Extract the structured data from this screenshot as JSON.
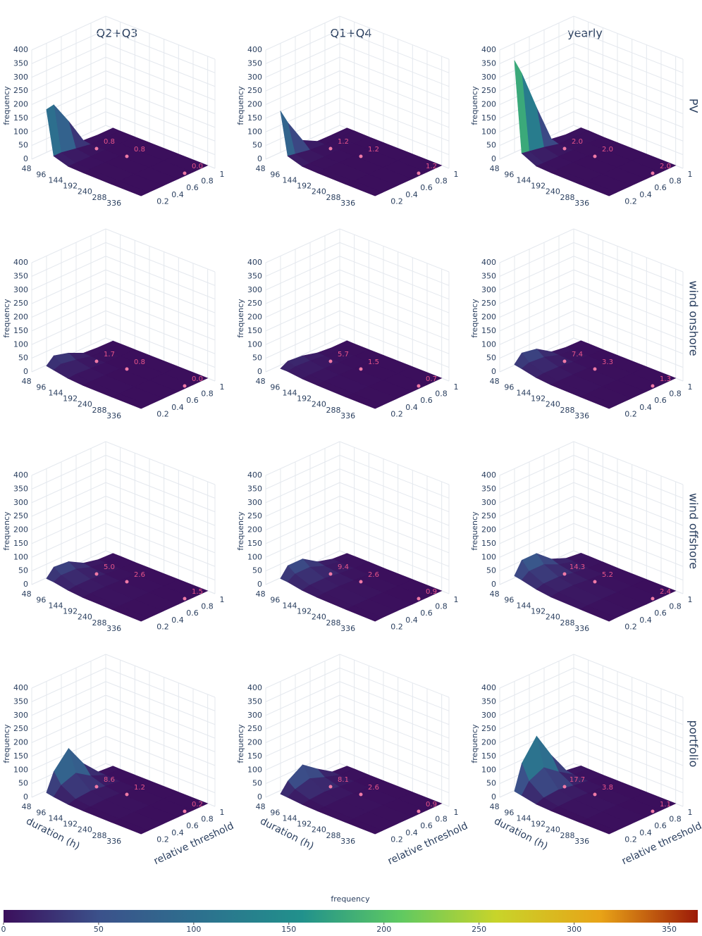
{
  "column_titles": [
    "Q2+Q3",
    "Q1+Q4",
    "yearly"
  ],
  "row_titles": [
    "PV",
    "wind onshore",
    "wind offshore",
    "portfolio"
  ],
  "axes": {
    "x": {
      "title": "duration (h)",
      "lim": [
        0,
        360
      ],
      "ticks": [
        48,
        96,
        144,
        192,
        240,
        288,
        336
      ]
    },
    "y": {
      "title": "relative threshold",
      "lim": [
        0,
        1
      ],
      "ticks": [
        0.2,
        0.4,
        0.6,
        0.8,
        1
      ]
    },
    "z": {
      "title": "frequency",
      "lim": [
        0,
        400
      ],
      "ticks": [
        0,
        50,
        100,
        150,
        200,
        250,
        300,
        350,
        400
      ]
    }
  },
  "colorbar": {
    "title": "frequency",
    "range": [
      0,
      365
    ],
    "ticks": [
      0,
      50,
      100,
      150,
      200,
      250,
      300,
      350
    ],
    "colorscale": [
      [
        0,
        "#3b0f5c"
      ],
      [
        0.14,
        "#3b528b"
      ],
      [
        0.29,
        "#2c728e"
      ],
      [
        0.43,
        "#21918c"
      ],
      [
        0.57,
        "#5ec962"
      ],
      [
        0.71,
        "#c8d42a"
      ],
      [
        0.86,
        "#e8a317"
      ],
      [
        1,
        "#9c1a08"
      ]
    ]
  },
  "chart_data": [
    {
      "type": "surface",
      "x": [
        24,
        48,
        96,
        144,
        240,
        336
      ],
      "y": [
        0.1,
        0.2,
        0.4,
        0.6,
        0.8,
        1
      ],
      "z": [
        [
          180,
          185,
          100,
          5,
          1,
          1
        ],
        [
          20,
          20,
          10,
          1,
          1,
          0
        ],
        [
          3,
          3,
          2,
          1,
          0,
          0
        ],
        [
          1,
          1,
          1,
          0,
          0,
          0
        ],
        [
          0,
          0,
          0,
          0,
          0,
          0
        ],
        [
          0,
          0,
          0,
          0,
          0,
          0
        ]
      ],
      "annotations": [
        "0.8",
        "0.8",
        "0.0"
      ]
    },
    {
      "type": "surface",
      "x": [
        24,
        48,
        96,
        144,
        240,
        336
      ],
      "y": [
        0.1,
        0.2,
        0.4,
        0.6,
        0.8,
        1
      ],
      "z": [
        [
          175,
          120,
          30,
          2,
          1,
          1
        ],
        [
          20,
          15,
          5,
          1,
          1,
          1
        ],
        [
          3,
          2,
          1,
          1,
          0,
          0
        ],
        [
          1,
          1,
          1,
          0,
          0,
          0
        ],
        [
          0,
          0,
          0,
          0,
          0,
          0
        ],
        [
          0,
          0,
          0,
          0,
          0,
          0
        ]
      ],
      "annotations": [
        "1.2",
        "1.2",
        "1.2"
      ]
    },
    {
      "type": "surface",
      "x": [
        24,
        48,
        96,
        144,
        240,
        336
      ],
      "y": [
        0.1,
        0.2,
        0.4,
        0.6,
        0.8,
        1
      ],
      "z": [
        [
          360,
          300,
          150,
          10,
          2,
          2
        ],
        [
          30,
          25,
          15,
          2,
          2,
          2
        ],
        [
          4,
          3,
          2,
          1,
          1,
          0
        ],
        [
          1,
          1,
          1,
          0,
          0,
          0
        ],
        [
          0,
          0,
          0,
          0,
          0,
          0
        ],
        [
          0,
          0,
          0,
          0,
          0,
          0
        ]
      ],
      "annotations": [
        "2.0",
        "2.0",
        "2.0"
      ]
    },
    {
      "type": "surface",
      "x": [
        24,
        48,
        96,
        144,
        240,
        336
      ],
      "y": [
        0.1,
        0.2,
        0.4,
        0.6,
        0.8,
        1
      ],
      "z": [
        [
          20,
          45,
          30,
          5,
          1,
          0
        ],
        [
          15,
          25,
          15,
          3,
          1,
          0
        ],
        [
          5,
          8,
          5,
          1,
          0,
          0
        ],
        [
          1,
          2,
          1,
          0,
          0,
          0
        ],
        [
          0,
          0,
          0,
          0,
          0,
          0
        ],
        [
          0,
          0,
          0,
          0,
          0,
          0
        ]
      ],
      "annotations": [
        "1.7",
        "0.8",
        "0.0"
      ]
    },
    {
      "type": "surface",
      "x": [
        24,
        48,
        96,
        144,
        240,
        336
      ],
      "y": [
        0.1,
        0.2,
        0.4,
        0.6,
        0.8,
        1
      ],
      "z": [
        [
          10,
          25,
          20,
          6,
          1,
          1
        ],
        [
          10,
          15,
          12,
          5,
          1,
          0
        ],
        [
          4,
          6,
          5,
          2,
          1,
          0
        ],
        [
          2,
          3,
          2,
          1,
          0,
          0
        ],
        [
          0,
          1,
          1,
          0,
          0,
          0
        ],
        [
          0,
          0,
          0,
          0,
          0,
          0
        ]
      ],
      "annotations": [
        "5.7",
        "1.5",
        "0.7"
      ]
    },
    {
      "type": "surface",
      "x": [
        24,
        48,
        96,
        144,
        240,
        336
      ],
      "y": [
        0.1,
        0.2,
        0.4,
        0.6,
        0.8,
        1
      ],
      "z": [
        [
          25,
          55,
          45,
          10,
          2,
          1
        ],
        [
          20,
          30,
          25,
          8,
          2,
          1
        ],
        [
          8,
          12,
          10,
          4,
          1,
          0
        ],
        [
          3,
          4,
          3,
          2,
          0,
          0
        ],
        [
          1,
          1,
          1,
          0,
          0,
          0
        ],
        [
          0,
          0,
          0,
          0,
          0,
          0
        ]
      ],
      "annotations": [
        "7.4",
        "3.3",
        "1.3"
      ]
    },
    {
      "type": "surface",
      "x": [
        24,
        48,
        96,
        144,
        240,
        336
      ],
      "y": [
        0.1,
        0.2,
        0.4,
        0.6,
        0.8,
        1
      ],
      "z": [
        [
          20,
          50,
          45,
          15,
          3,
          1
        ],
        [
          18,
          30,
          28,
          10,
          2,
          1
        ],
        [
          8,
          12,
          12,
          5,
          1,
          0
        ],
        [
          3,
          5,
          5,
          2,
          1,
          0
        ],
        [
          1,
          1,
          1,
          1,
          0,
          0
        ],
        [
          0,
          0,
          0,
          0,
          0,
          0
        ]
      ],
      "annotations": [
        "5.0",
        "2.6",
        "1.5"
      ]
    },
    {
      "type": "surface",
      "x": [
        24,
        48,
        96,
        144,
        240,
        336
      ],
      "y": [
        0.1,
        0.2,
        0.4,
        0.6,
        0.8,
        1
      ],
      "z": [
        [
          20,
          55,
          55,
          20,
          5,
          1
        ],
        [
          18,
          35,
          35,
          15,
          4,
          1
        ],
        [
          8,
          15,
          15,
          8,
          2,
          1
        ],
        [
          4,
          7,
          7,
          4,
          1,
          0
        ],
        [
          1,
          2,
          2,
          1,
          0,
          0
        ],
        [
          0,
          1,
          1,
          0,
          0,
          0
        ]
      ],
      "annotations": [
        "9.4",
        "2.6",
        "0.9"
      ]
    },
    {
      "type": "surface",
      "x": [
        24,
        48,
        96,
        144,
        240,
        336
      ],
      "y": [
        0.1,
        0.2,
        0.4,
        0.6,
        0.8,
        1
      ],
      "z": [
        [
          30,
          75,
          75,
          30,
          8,
          2
        ],
        [
          25,
          45,
          45,
          20,
          6,
          2
        ],
        [
          12,
          20,
          20,
          10,
          3,
          1
        ],
        [
          5,
          10,
          10,
          5,
          2,
          0
        ],
        [
          2,
          3,
          3,
          2,
          1,
          0
        ],
        [
          0,
          1,
          1,
          0,
          0,
          0
        ]
      ],
      "annotations": [
        "14.3",
        "5.2",
        "2.4"
      ]
    },
    {
      "type": "surface",
      "x": [
        24,
        48,
        96,
        144,
        240,
        336
      ],
      "y": [
        0.1,
        0.2,
        0.4,
        0.6,
        0.8,
        1
      ],
      "z": [
        [
          15,
          80,
          140,
          60,
          5,
          1
        ],
        [
          10,
          40,
          60,
          25,
          3,
          0
        ],
        [
          3,
          10,
          15,
          8,
          1,
          0
        ],
        [
          1,
          3,
          5,
          2,
          0,
          0
        ],
        [
          0,
          1,
          1,
          0,
          0,
          0
        ],
        [
          0,
          0,
          0,
          0,
          0,
          0
        ]
      ],
      "annotations": [
        "8.6",
        "1.2",
        "0.2"
      ]
    },
    {
      "type": "surface",
      "x": [
        24,
        48,
        96,
        144,
        240,
        336
      ],
      "y": [
        0.1,
        0.2,
        0.4,
        0.6,
        0.8,
        1
      ],
      "z": [
        [
          10,
          45,
          80,
          40,
          5,
          1
        ],
        [
          8,
          25,
          40,
          20,
          3,
          1
        ],
        [
          3,
          8,
          12,
          6,
          1,
          0
        ],
        [
          1,
          3,
          4,
          2,
          0,
          0
        ],
        [
          0,
          1,
          1,
          1,
          0,
          0
        ],
        [
          0,
          0,
          0,
          0,
          0,
          0
        ]
      ],
      "annotations": [
        "8.1",
        "2.6",
        "0.9"
      ]
    },
    {
      "type": "surface",
      "x": [
        24,
        48,
        96,
        144,
        240,
        336
      ],
      "y": [
        0.1,
        0.2,
        0.4,
        0.6,
        0.8,
        1
      ],
      "z": [
        [
          20,
          110,
          185,
          90,
          10,
          2
        ],
        [
          15,
          55,
          80,
          40,
          5,
          1
        ],
        [
          4,
          15,
          20,
          10,
          2,
          0
        ],
        [
          1,
          4,
          6,
          3,
          1,
          0
        ],
        [
          0,
          1,
          2,
          1,
          0,
          0
        ],
        [
          0,
          0,
          0,
          0,
          0,
          0
        ]
      ],
      "annotations": [
        "17.7",
        "3.8",
        "1.1"
      ]
    }
  ]
}
